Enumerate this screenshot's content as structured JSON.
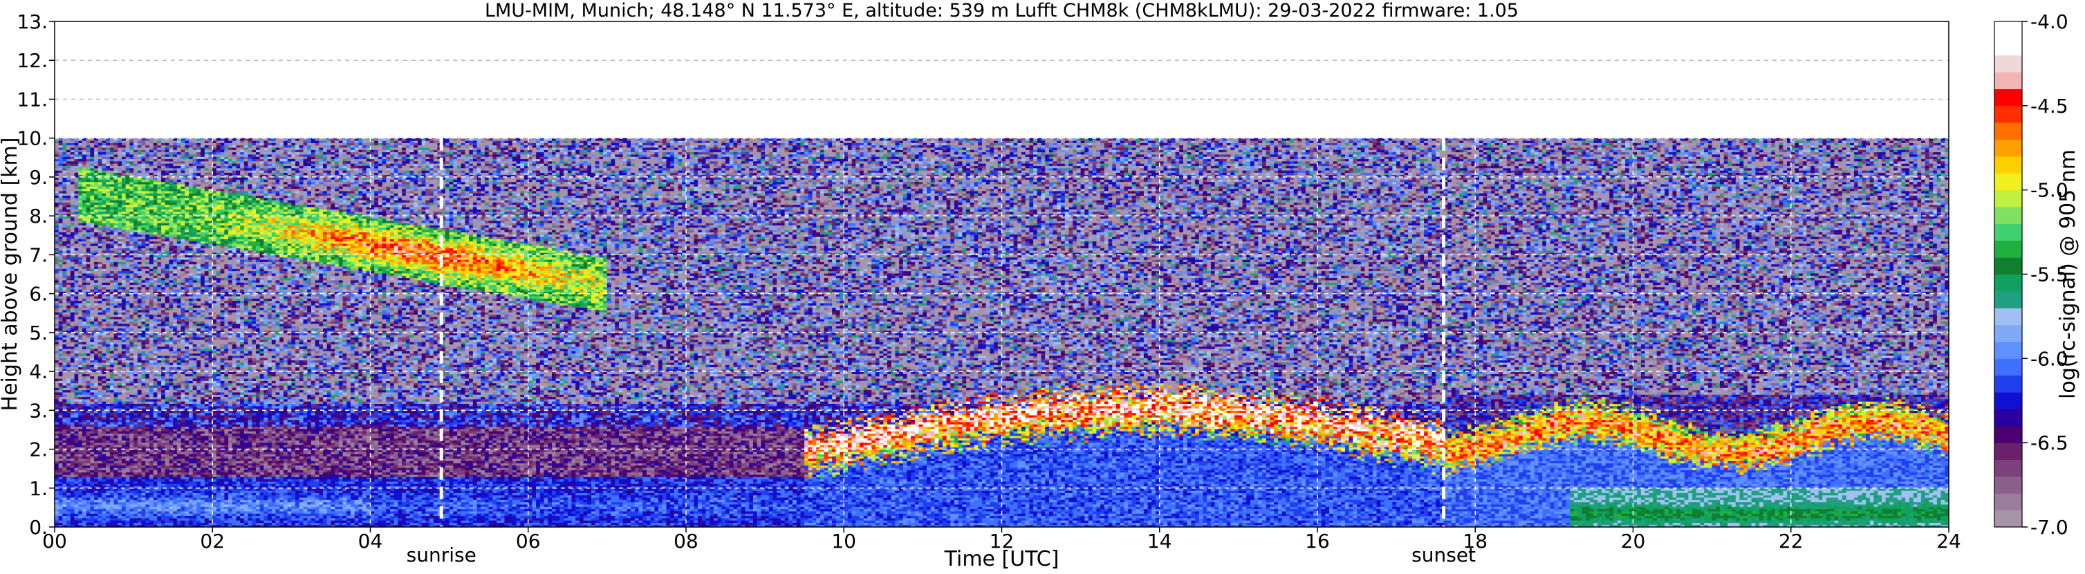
{
  "chart_data": {
    "type": "heatmap",
    "title": "LMU-MIM, Munich; 48.148° N 11.573° E, altitude: 539 m    Lufft CHM8k (CHM8kLMU): 29-03-2022    firmware: 1.05",
    "xlabel": "Time [UTC]",
    "ylabel": "Height above ground [km]",
    "xlim": [
      0,
      24
    ],
    "ylim": [
      0,
      13
    ],
    "x_ticks": [
      0,
      2,
      4,
      6,
      8,
      10,
      12,
      14,
      16,
      18,
      20,
      22,
      24
    ],
    "x_tick_labels": [
      "00",
      "02",
      "04",
      "06",
      "08",
      "10",
      "12",
      "14",
      "16",
      "18",
      "20",
      "22",
      "24"
    ],
    "y_ticks": [
      0,
      1,
      2,
      3,
      4,
      5,
      6,
      7,
      8,
      9,
      10,
      11,
      12,
      13
    ],
    "y_tick_labels": [
      "0.",
      "1.",
      "2.",
      "3.",
      "4.",
      "5.",
      "6.",
      "7.",
      "8.",
      "9.",
      "10.",
      "11.",
      "12.",
      "13."
    ],
    "grid": true,
    "data_top_km": 10,
    "events": [
      {
        "label": "sunrise",
        "time": 4.9
      },
      {
        "label": "sunset",
        "time": 17.6
      }
    ],
    "colorbar": {
      "label": "log(rc-signal) @ 905 nm",
      "range": [
        -7.0,
        -4.0
      ],
      "tick_values": [
        -7.0,
        -6.5,
        -6.0,
        -5.5,
        -5.0,
        -4.5,
        -4.0
      ],
      "tick_labels": [
        "-7.0",
        "-6.5",
        "-6.0",
        "-5.5",
        "-5.0",
        "-4.5",
        "-4.0"
      ],
      "colors": [
        "#a894a8",
        "#9c7c9c",
        "#8c608c",
        "#7c407c",
        "#6a206a",
        "#4a0070",
        "#2a00a0",
        "#1010d0",
        "#2040f0",
        "#4070ff",
        "#6090ff",
        "#80aaf8",
        "#a0c0f4",
        "#20a080",
        "#10a060",
        "#108030",
        "#20b040",
        "#40d070",
        "#80e060",
        "#c0f040",
        "#f0f020",
        "#ffd000",
        "#ffa000",
        "#ff7000",
        "#ff3000",
        "#ff0000",
        "#f4b4b4",
        "#eed8d8",
        "#ffffff",
        "#ffffff"
      ]
    }
  }
}
